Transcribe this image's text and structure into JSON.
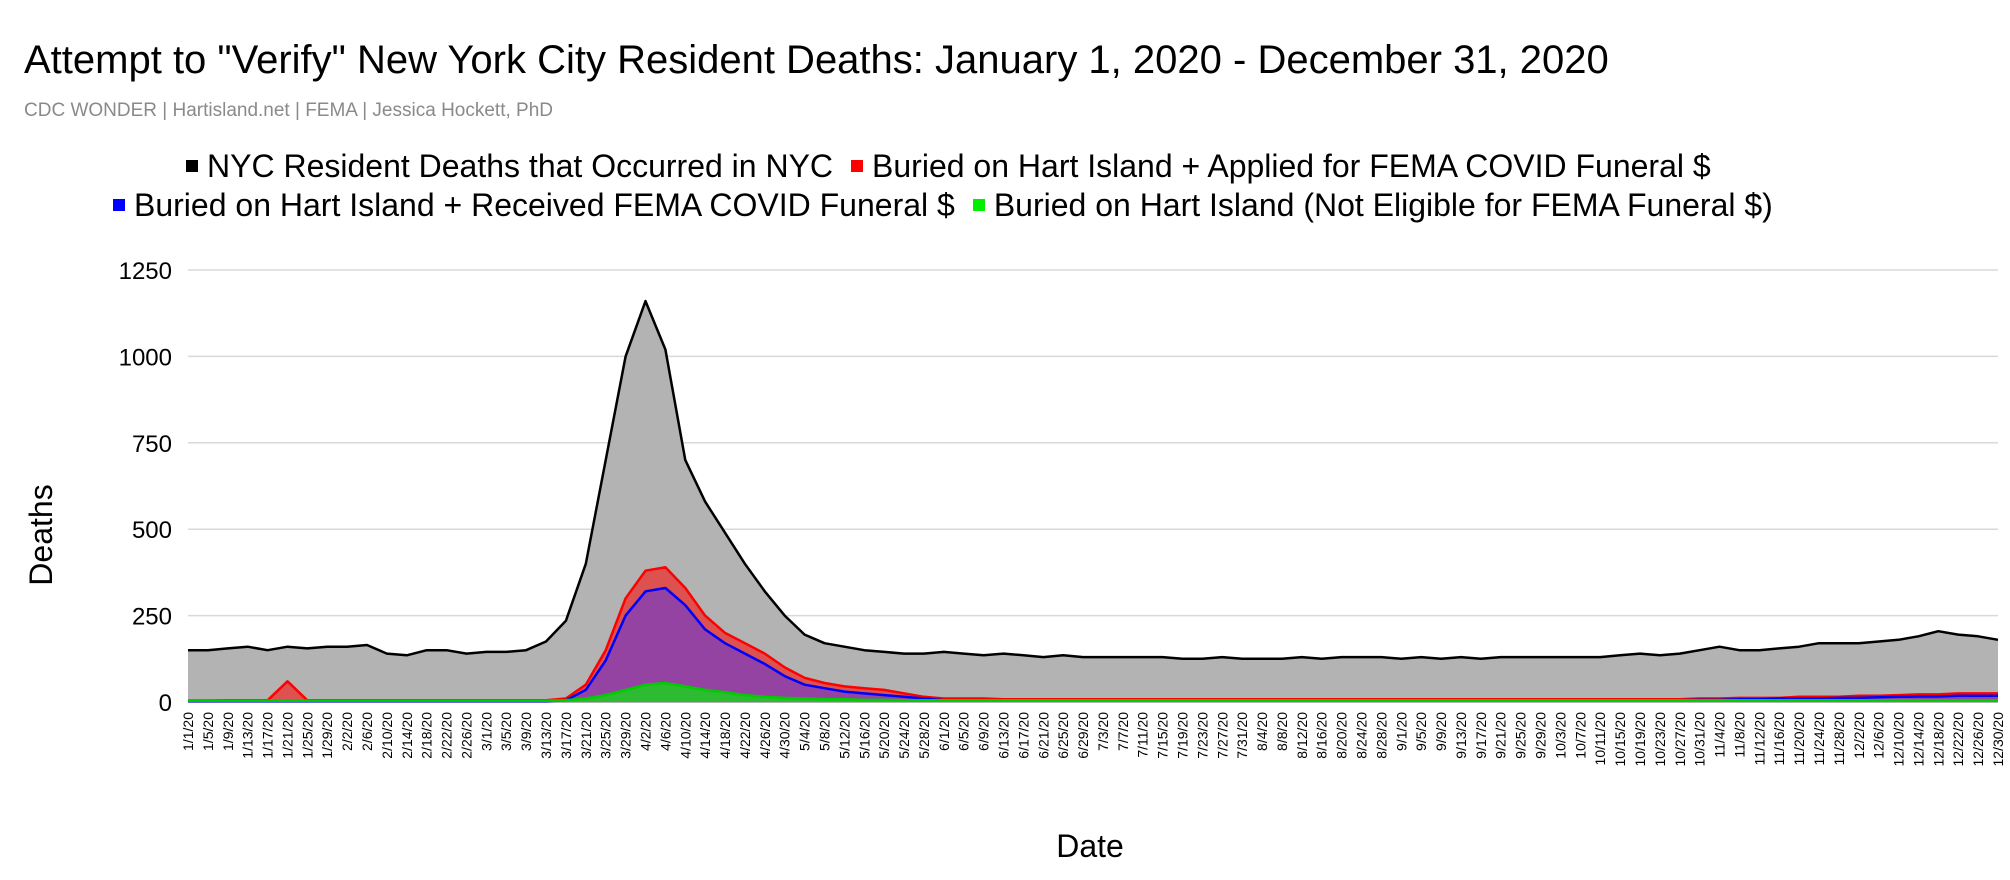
{
  "chart_data": {
    "type": "area",
    "title": "Attempt to \"Verify\" New York City Resident Deaths: January 1, 2020 - December 31, 2020",
    "subtitle": "CDC WONDER | Hartisland.net | FEMA | Jessica Hockett, PhD",
    "xlabel": "Date",
    "ylabel": "Deaths",
    "ylim": [
      0,
      1250
    ],
    "yticks": [
      "0",
      "250",
      "500",
      "750",
      "1000",
      "1250"
    ],
    "xticks": [
      "1/1/20",
      "1/5/20",
      "1/9/20",
      "1/13/20",
      "1/17/20",
      "1/21/20",
      "1/25/20",
      "1/29/20",
      "2/2/20",
      "2/6/20",
      "2/10/20",
      "2/14/20",
      "2/18/20",
      "2/22/20",
      "2/26/20",
      "3/1/20",
      "3/5/20",
      "3/9/20",
      "3/13/20",
      "3/17/20",
      "3/21/20",
      "3/25/20",
      "3/29/20",
      "4/2/20",
      "4/6/20",
      "4/10/20",
      "4/14/20",
      "4/18/20",
      "4/22/20",
      "4/26/20",
      "4/30/20",
      "5/4/20",
      "5/8/20",
      "5/12/20",
      "5/16/20",
      "5/20/20",
      "5/24/20",
      "5/28/20",
      "6/1/20",
      "6/5/20",
      "6/9/20",
      "6/13/20",
      "6/17/20",
      "6/21/20",
      "6/25/20",
      "6/29/20",
      "7/3/20",
      "7/7/20",
      "7/11/20",
      "7/15/20",
      "7/19/20",
      "7/23/20",
      "7/27/20",
      "7/31/20",
      "8/4/20",
      "8/8/20",
      "8/12/20",
      "8/16/20",
      "8/20/20",
      "8/24/20",
      "8/28/20",
      "9/1/20",
      "9/5/20",
      "9/9/20",
      "9/13/20",
      "9/17/20",
      "9/21/20",
      "9/25/20",
      "9/29/20",
      "10/3/20",
      "10/7/20",
      "10/11/20",
      "10/15/20",
      "10/19/20",
      "10/23/20",
      "10/27/20",
      "10/31/20",
      "11/4/20",
      "11/8/20",
      "11/12/20",
      "11/16/20",
      "11/20/20",
      "11/24/20",
      "11/28/20",
      "12/2/20",
      "12/6/20",
      "12/10/20",
      "12/14/20",
      "12/18/20",
      "12/22/20",
      "12/26/20",
      "12/30/20"
    ],
    "x_days_every_4": [
      "1/1/20",
      "...",
      "12/30/20"
    ],
    "legend": [
      {
        "label": "NYC Resident Deaths that Occurred in NYC",
        "color": "#000000",
        "fill": "#b3b3b3"
      },
      {
        "label": "Buried on Hart Island + Applied for FEMA COVID Funeral $",
        "color": "#ff0000",
        "fill": "#ff0000"
      },
      {
        "label": "Buried on Hart Island + Received FEMA COVID Funeral $",
        "color": "#0000ff",
        "fill": "#8e44ad"
      },
      {
        "label": "Buried on Hart Island (Not Eligible for FEMA Funeral $)",
        "color": "#00ee00",
        "fill": "#00ee00"
      }
    ],
    "series": [
      {
        "name": "NYC Resident Deaths that Occurred in NYC",
        "values_at_xticks": [
          150,
          150,
          155,
          160,
          150,
          160,
          155,
          160,
          160,
          165,
          140,
          135,
          150,
          150,
          140,
          145,
          145,
          150,
          175,
          235,
          400,
          700,
          1000,
          1160,
          1020,
          700,
          580,
          490,
          400,
          320,
          250,
          195,
          170,
          160,
          150,
          145,
          140,
          140,
          145,
          140,
          135,
          140,
          135,
          130,
          135,
          130,
          130,
          130,
          130,
          130,
          125,
          125,
          130,
          125,
          125,
          125,
          130,
          125,
          130,
          130,
          130,
          125,
          130,
          125,
          130,
          125,
          130,
          130,
          130,
          130,
          130,
          130,
          135,
          140,
          135,
          140,
          150,
          160,
          150,
          150,
          155,
          160,
          170,
          170,
          170,
          175,
          180,
          190,
          205,
          195,
          190,
          180
        ]
      },
      {
        "name": "Buried on Hart Island + Applied for FEMA COVID Funeral $",
        "values_at_xticks": [
          5,
          5,
          5,
          5,
          5,
          60,
          5,
          5,
          5,
          5,
          5,
          5,
          5,
          5,
          5,
          5,
          5,
          5,
          5,
          10,
          50,
          150,
          300,
          380,
          390,
          330,
          250,
          200,
          170,
          140,
          100,
          70,
          55,
          45,
          40,
          35,
          25,
          15,
          10,
          10,
          10,
          8,
          8,
          8,
          8,
          8,
          8,
          8,
          8,
          8,
          8,
          8,
          8,
          8,
          8,
          8,
          8,
          8,
          8,
          8,
          8,
          8,
          8,
          8,
          8,
          8,
          8,
          8,
          8,
          8,
          8,
          8,
          8,
          8,
          8,
          8,
          10,
          10,
          12,
          12,
          12,
          15,
          15,
          15,
          18,
          18,
          20,
          22,
          22,
          25,
          25,
          25
        ]
      },
      {
        "name": "Buried on Hart Island + Received FEMA COVID Funeral $",
        "values_at_xticks": [
          2,
          2,
          2,
          2,
          2,
          2,
          2,
          2,
          2,
          2,
          2,
          2,
          2,
          2,
          2,
          2,
          2,
          2,
          2,
          5,
          35,
          120,
          250,
          320,
          330,
          280,
          210,
          170,
          140,
          110,
          75,
          50,
          40,
          30,
          25,
          20,
          15,
          10,
          5,
          5,
          5,
          5,
          5,
          5,
          5,
          5,
          5,
          5,
          5,
          5,
          5,
          5,
          5,
          5,
          5,
          5,
          5,
          5,
          5,
          5,
          5,
          5,
          5,
          5,
          5,
          5,
          5,
          5,
          5,
          5,
          5,
          5,
          5,
          5,
          5,
          5,
          6,
          6,
          8,
          8,
          10,
          10,
          10,
          12,
          12,
          14,
          15,
          16,
          16,
          18,
          18,
          18
        ]
      },
      {
        "name": "Buried on Hart Island (Not Eligible for FEMA Funeral $)",
        "values_at_xticks": [
          5,
          5,
          4,
          4,
          4,
          4,
          4,
          4,
          4,
          4,
          4,
          4,
          4,
          4,
          4,
          4,
          4,
          4,
          4,
          5,
          10,
          20,
          35,
          50,
          55,
          45,
          35,
          28,
          20,
          15,
          12,
          10,
          8,
          8,
          6,
          6,
          5,
          5,
          5,
          5,
          5,
          5,
          5,
          5,
          5,
          5,
          5,
          5,
          5,
          5,
          5,
          5,
          5,
          5,
          5,
          5,
          5,
          5,
          5,
          5,
          5,
          5,
          5,
          5,
          5,
          5,
          5,
          5,
          5,
          5,
          5,
          5,
          5,
          5,
          5,
          5,
          5,
          5,
          5,
          5,
          5,
          5,
          5,
          5,
          5,
          5,
          5,
          5,
          5,
          5,
          5,
          5
        ]
      }
    ]
  }
}
